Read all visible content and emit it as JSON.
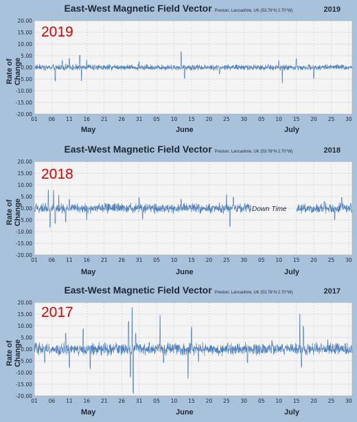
{
  "chart_data": [
    {
      "type": "line",
      "title": "East-West Magnetic Field Vector",
      "location": "Preston, Lancashire, UK  (53.76°N 2.70°W)",
      "year_label": "2019",
      "big_label": "2019",
      "ylabel": "Rate of Change",
      "ylim": [
        -20,
        20
      ],
      "yticks": [
        "20.00",
        "15.00",
        "10.00",
        "5.00",
        "0.00",
        "-5.00",
        "-10.00",
        "-15.00",
        "-20.00"
      ],
      "xticks": [
        "01",
        "06",
        "11",
        "16",
        "21",
        "26",
        "31",
        "05",
        "10",
        "15",
        "20",
        "25",
        "30",
        "05",
        "10",
        "15",
        "20",
        "25",
        "30"
      ],
      "months": [
        "May",
        "June",
        "July"
      ],
      "days": 92,
      "series": [
        {
          "color": "#4f81bd",
          "typical_amplitude": 1.2,
          "gaps": [],
          "spikes": [
            [
              6,
              -6
            ],
            [
              8,
              3
            ],
            [
              10,
              4
            ],
            [
              13,
              5.5
            ],
            [
              13.5,
              -6
            ],
            [
              15,
              3
            ],
            [
              30,
              2.5
            ],
            [
              42,
              7
            ],
            [
              43,
              -5
            ],
            [
              53,
              -3
            ],
            [
              70,
              3
            ],
            [
              71,
              -7
            ],
            [
              75,
              4
            ],
            [
              80,
              -5
            ]
          ]
        }
      ]
    },
    {
      "type": "line",
      "title": "East-West Magnetic Field Vector",
      "location": "Preston, Lancashire, UK  (53.76°N 2.70°W)",
      "year_label": "2018",
      "big_label": "2018",
      "ylabel": "Rate of Change",
      "ylim": [
        -20,
        20
      ],
      "yticks": [
        "20.00",
        "15.00",
        "10.00",
        "5.00",
        "0.00",
        "-5.00",
        "-10.00",
        "-15.00",
        "-20.00"
      ],
      "xticks": [
        "01",
        "06",
        "11",
        "16",
        "21",
        "26",
        "31",
        "05",
        "10",
        "15",
        "20",
        "25",
        "30",
        "05",
        "10",
        "15",
        "20",
        "25",
        "30"
      ],
      "months": [
        "May",
        "June",
        "July"
      ],
      "annotation": "Down Time",
      "days": 92,
      "series": [
        {
          "color": "#4f81bd",
          "typical_amplitude": 2,
          "gaps": [
            [
              62,
              75
            ]
          ],
          "spikes": [
            [
              4,
              8
            ],
            [
              4.5,
              -9
            ],
            [
              5.5,
              9
            ],
            [
              6,
              -7
            ],
            [
              7,
              6
            ],
            [
              9,
              -6
            ],
            [
              10,
              4
            ],
            [
              15,
              -5
            ],
            [
              30,
              5
            ],
            [
              31,
              -5
            ],
            [
              42,
              4
            ],
            [
              55,
              6
            ],
            [
              56,
              -8
            ],
            [
              57,
              5
            ],
            [
              83,
              3
            ],
            [
              86,
              -5
            ],
            [
              88,
              5
            ]
          ]
        }
      ]
    },
    {
      "type": "line",
      "title": "East-West Magnetic Field Vector",
      "location": "Preston, Lancashire, UK  (53.76°N 2.70°W)",
      "year_label": "2017",
      "big_label": "2017",
      "ylabel": "Rate of Change",
      "ylim": [
        -20,
        20
      ],
      "yticks": [
        "20.00",
        "15.00",
        "10.00",
        "5.00",
        "0.00",
        "-5.00",
        "-10.00",
        "-15.00",
        "-20.00"
      ],
      "xticks": [
        "01",
        "06",
        "11",
        "16",
        "21",
        "26",
        "31",
        "05",
        "10",
        "15",
        "20",
        "25",
        "30",
        "05",
        "10",
        "15",
        "20",
        "25",
        "30"
      ],
      "months": [
        "May",
        "June",
        "July"
      ],
      "days": 92,
      "series": [
        {
          "color": "#4f81bd",
          "typical_amplitude": 2.5,
          "gaps": [],
          "spikes": [
            [
              3,
              -6
            ],
            [
              9,
              7
            ],
            [
              10,
              -8
            ],
            [
              14,
              9
            ],
            [
              16,
              -9
            ],
            [
              27,
              12
            ],
            [
              27.5,
              -13
            ],
            [
              28,
              20
            ],
            [
              28.3,
              -20
            ],
            [
              29,
              7
            ],
            [
              36,
              15
            ],
            [
              37,
              -6
            ],
            [
              44,
              -13
            ],
            [
              45,
              10
            ],
            [
              47,
              -6
            ],
            [
              61,
              -6
            ],
            [
              68,
              4
            ],
            [
              76,
              16
            ],
            [
              76.5,
              -8
            ],
            [
              77,
              10
            ],
            [
              84,
              4
            ]
          ]
        }
      ]
    }
  ]
}
